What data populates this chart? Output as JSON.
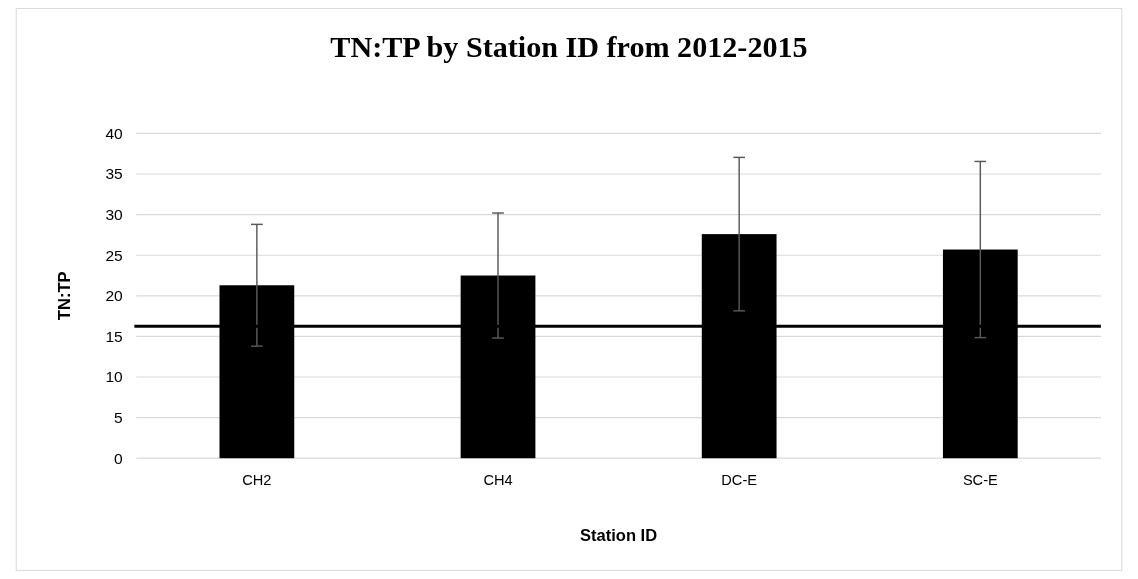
{
  "chart_data": {
    "type": "bar",
    "title": "TN:TP by Station ID from 2012-2015",
    "xlabel": "Station ID",
    "ylabel": "TN:TP",
    "categories": [
      "CH2",
      "CH4",
      "DC-E",
      "SC-E"
    ],
    "values": [
      21.3,
      22.5,
      27.6,
      25.7
    ],
    "errors": [
      7.5,
      7.7,
      9.45,
      10.85
    ],
    "color": "#000000",
    "ylim": [
      0,
      40
    ],
    "yticks": [
      0,
      5,
      10,
      15,
      20,
      25,
      30,
      35,
      40
    ],
    "grid": "y",
    "ref_lines": [
      {
        "axis": "y",
        "value": 16.25,
        "color": "#000000"
      }
    ]
  }
}
